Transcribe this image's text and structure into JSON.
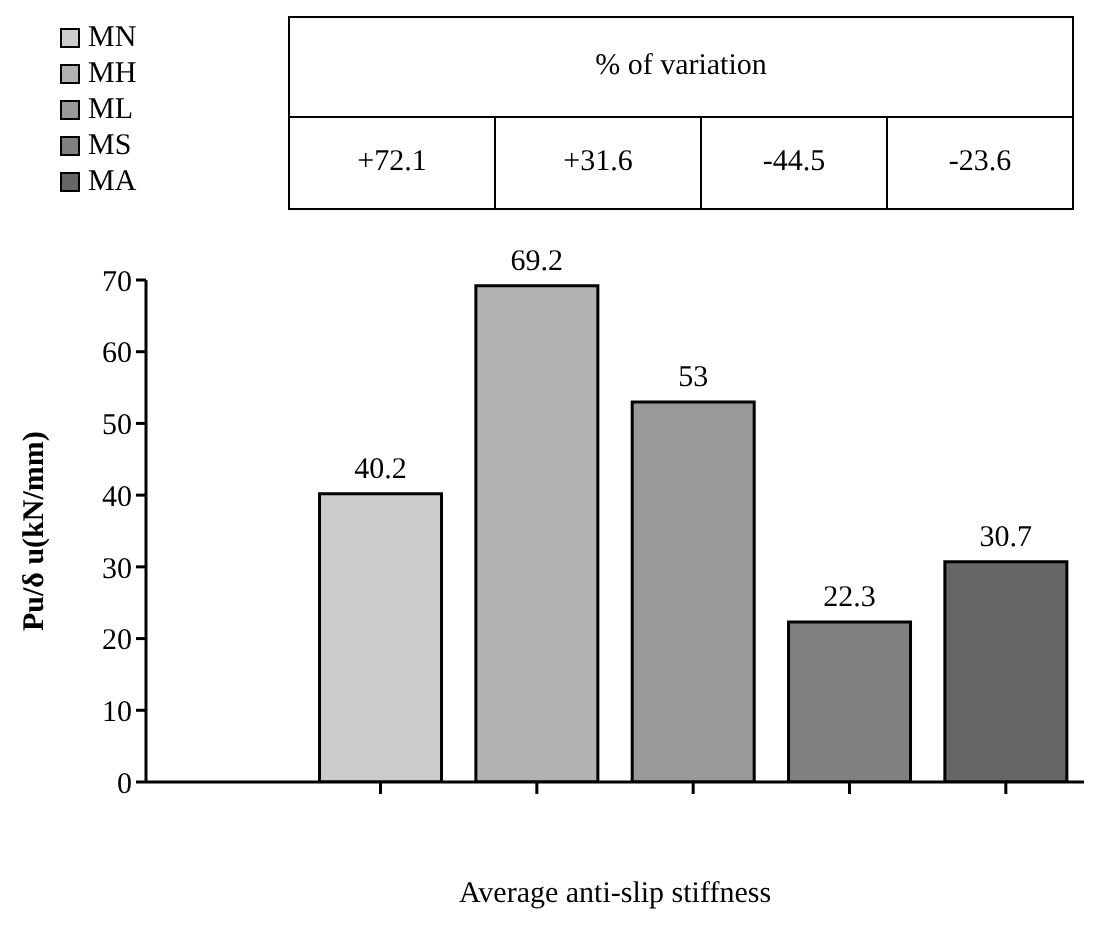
{
  "chart_data": {
    "type": "bar",
    "xlabel": "Average anti-slip stiffness",
    "ylabel": "Pu/δ u(kN/mm)",
    "categories": [
      null,
      null,
      null,
      null,
      null,
      null
    ],
    "series": [
      {
        "name": "MN",
        "color": "#cccccc",
        "values": [
          null,
          40.2,
          null,
          null,
          null,
          null
        ]
      },
      {
        "name": "MH",
        "color": "#b2b2b2",
        "values": [
          null,
          null,
          69.2,
          null,
          null,
          null
        ]
      },
      {
        "name": "ML",
        "color": "#999999",
        "values": [
          null,
          null,
          null,
          53,
          null,
          null
        ]
      },
      {
        "name": "MS",
        "color": "#808080",
        "values": [
          null,
          null,
          null,
          null,
          22.3,
          null
        ]
      },
      {
        "name": "MA",
        "color": "#666666",
        "values": [
          null,
          null,
          null,
          null,
          null,
          30.7
        ]
      }
    ],
    "ylim": [
      0,
      70
    ],
    "yticks": [
      0,
      10,
      20,
      30,
      40,
      50,
      60,
      70
    ],
    "grid": false,
    "data_labels": true,
    "legend": "top left",
    "annotations": [
      "% of variation",
      "+72.1",
      "+31.6",
      "-44.5",
      "-23.6"
    ]
  }
}
